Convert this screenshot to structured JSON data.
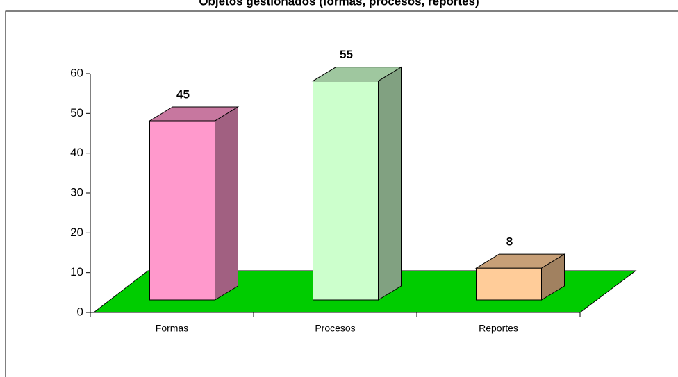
{
  "chart_data": {
    "type": "bar3d",
    "title": "Objetos gestionados (formas, procesos, reportes)",
    "categories": [
      "Formas",
      "Procesos",
      "Reportes"
    ],
    "values": [
      45,
      55,
      8
    ],
    "colors": [
      "#ff99cc",
      "#ccffcc",
      "#ffcc99"
    ],
    "ylim": [
      0,
      60
    ],
    "yticks": [
      0,
      10,
      20,
      30,
      40,
      50,
      60
    ],
    "floor_color": "#00cc00"
  }
}
